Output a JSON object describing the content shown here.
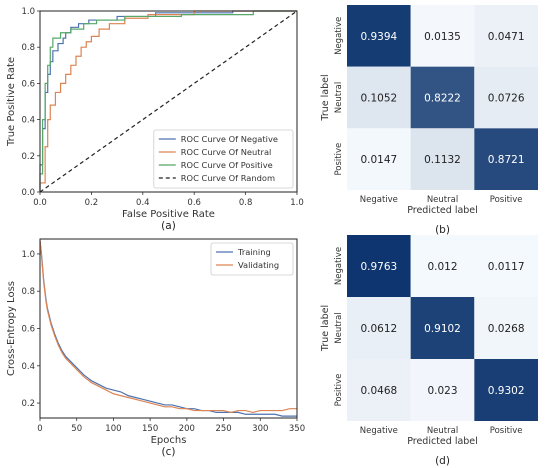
{
  "chart_data": [
    {
      "id": "a",
      "type": "line",
      "panel_label": "(a)",
      "xlabel": "False Positive Rate",
      "ylabel": "True Positive Rate",
      "xlim": [
        0,
        1
      ],
      "ylim": [
        0,
        1
      ],
      "xticks": [
        "0.0",
        "0.2",
        "0.4",
        "0.6",
        "0.8",
        "1.0"
      ],
      "yticks": [
        "0.0",
        "0.2",
        "0.4",
        "0.6",
        "0.8",
        "1.0"
      ],
      "grid": false,
      "legend_position": "lower-right",
      "series": [
        {
          "name": "ROC Curve Of Negative",
          "color": "#4c72b0",
          "style": "step",
          "points": [
            [
              0,
              0
            ],
            [
              0,
              0.15
            ],
            [
              0.01,
              0.15
            ],
            [
              0.01,
              0.35
            ],
            [
              0.02,
              0.35
            ],
            [
              0.02,
              0.55
            ],
            [
              0.03,
              0.55
            ],
            [
              0.03,
              0.65
            ],
            [
              0.04,
              0.65
            ],
            [
              0.04,
              0.72
            ],
            [
              0.05,
              0.72
            ],
            [
              0.05,
              0.78
            ],
            [
              0.07,
              0.78
            ],
            [
              0.07,
              0.82
            ],
            [
              0.09,
              0.82
            ],
            [
              0.09,
              0.85
            ],
            [
              0.1,
              0.85
            ],
            [
              0.1,
              0.88
            ],
            [
              0.12,
              0.88
            ],
            [
              0.12,
              0.91
            ],
            [
              0.15,
              0.91
            ],
            [
              0.15,
              0.93
            ],
            [
              0.19,
              0.93
            ],
            [
              0.19,
              0.95
            ],
            [
              0.3,
              0.95
            ],
            [
              0.3,
              0.97
            ],
            [
              0.45,
              0.97
            ],
            [
              0.45,
              0.99
            ],
            [
              0.75,
              0.99
            ],
            [
              0.75,
              1
            ],
            [
              1,
              1
            ]
          ]
        },
        {
          "name": "ROC Curve Of Neutral",
          "color": "#dd8452",
          "style": "step",
          "points": [
            [
              0,
              0
            ],
            [
              0,
              0.05
            ],
            [
              0.02,
              0.05
            ],
            [
              0.02,
              0.25
            ],
            [
              0.03,
              0.25
            ],
            [
              0.03,
              0.4
            ],
            [
              0.04,
              0.4
            ],
            [
              0.04,
              0.48
            ],
            [
              0.06,
              0.48
            ],
            [
              0.06,
              0.55
            ],
            [
              0.08,
              0.55
            ],
            [
              0.08,
              0.6
            ],
            [
              0.1,
              0.6
            ],
            [
              0.1,
              0.65
            ],
            [
              0.12,
              0.65
            ],
            [
              0.12,
              0.7
            ],
            [
              0.14,
              0.7
            ],
            [
              0.14,
              0.75
            ],
            [
              0.16,
              0.75
            ],
            [
              0.16,
              0.8
            ],
            [
              0.18,
              0.8
            ],
            [
              0.18,
              0.83
            ],
            [
              0.2,
              0.83
            ],
            [
              0.2,
              0.86
            ],
            [
              0.23,
              0.86
            ],
            [
              0.23,
              0.9
            ],
            [
              0.27,
              0.9
            ],
            [
              0.27,
              0.93
            ],
            [
              0.33,
              0.93
            ],
            [
              0.33,
              0.96
            ],
            [
              0.42,
              0.96
            ],
            [
              0.42,
              0.98
            ],
            [
              0.6,
              0.98
            ],
            [
              0.6,
              1
            ],
            [
              1,
              1
            ]
          ]
        },
        {
          "name": "ROC Curve Of Positive",
          "color": "#55a868",
          "style": "step",
          "points": [
            [
              0,
              0
            ],
            [
              0,
              0.1
            ],
            [
              0.01,
              0.1
            ],
            [
              0.01,
              0.4
            ],
            [
              0.02,
              0.4
            ],
            [
              0.02,
              0.6
            ],
            [
              0.03,
              0.6
            ],
            [
              0.03,
              0.7
            ],
            [
              0.04,
              0.7
            ],
            [
              0.04,
              0.8
            ],
            [
              0.05,
              0.8
            ],
            [
              0.05,
              0.85
            ],
            [
              0.08,
              0.85
            ],
            [
              0.08,
              0.88
            ],
            [
              0.12,
              0.88
            ],
            [
              0.12,
              0.9
            ],
            [
              0.17,
              0.9
            ],
            [
              0.17,
              0.93
            ],
            [
              0.22,
              0.93
            ],
            [
              0.22,
              0.95
            ],
            [
              0.33,
              0.95
            ],
            [
              0.33,
              0.97
            ],
            [
              0.55,
              0.97
            ],
            [
              0.55,
              0.98
            ],
            [
              0.83,
              0.98
            ],
            [
              0.83,
              1
            ],
            [
              1,
              1
            ]
          ]
        },
        {
          "name": "ROC Curve Of Random",
          "color": "#222222",
          "style": "dashed",
          "points": [
            [
              0,
              0
            ],
            [
              1,
              1
            ]
          ]
        }
      ]
    },
    {
      "id": "b",
      "type": "heatmap",
      "panel_label": "(b)",
      "xlabel": "Predicted label",
      "ylabel": "True label",
      "labels": [
        "Negative",
        "Neutral",
        "Positive"
      ],
      "values": [
        [
          0.9394,
          0.0135,
          0.0471
        ],
        [
          0.1052,
          0.8222,
          0.0726
        ],
        [
          0.0147,
          0.1132,
          0.8721
        ]
      ],
      "text": [
        [
          "0.9394",
          "0.0135",
          "0.0471"
        ],
        [
          "0.1052",
          "0.8222",
          "0.0726"
        ],
        [
          "0.0147",
          "0.1132",
          "0.8721"
        ]
      ],
      "colormap": "Blues"
    },
    {
      "id": "c",
      "type": "line",
      "panel_label": "(c)",
      "xlabel": "Epochs",
      "ylabel": "Cross-Entropy Loss",
      "xlim": [
        0,
        350
      ],
      "ylim": [
        0.12,
        1.08
      ],
      "xticks": [
        "0",
        "50",
        "100",
        "150",
        "200",
        "250",
        "300",
        "350"
      ],
      "yticks": [
        "0.2",
        "0.4",
        "0.6",
        "0.8",
        "1.0"
      ],
      "grid": false,
      "legend_position": "top-right",
      "series": [
        {
          "name": "Training",
          "color": "#4c72b0",
          "x": [
            0,
            2,
            5,
            8,
            10,
            15,
            20,
            25,
            30,
            35,
            40,
            50,
            60,
            70,
            80,
            90,
            100,
            110,
            120,
            130,
            140,
            150,
            160,
            170,
            180,
            190,
            200,
            210,
            220,
            230,
            240,
            250,
            260,
            270,
            280,
            290,
            300,
            310,
            320,
            330,
            340,
            350
          ],
          "y": [
            1.07,
            1.0,
            0.86,
            0.76,
            0.71,
            0.63,
            0.57,
            0.52,
            0.48,
            0.45,
            0.43,
            0.39,
            0.35,
            0.32,
            0.3,
            0.28,
            0.27,
            0.26,
            0.24,
            0.23,
            0.22,
            0.21,
            0.2,
            0.19,
            0.19,
            0.18,
            0.17,
            0.17,
            0.16,
            0.16,
            0.15,
            0.15,
            0.15,
            0.15,
            0.14,
            0.14,
            0.14,
            0.14,
            0.14,
            0.13,
            0.13,
            0.13
          ]
        },
        {
          "name": "Validating",
          "color": "#dd8452",
          "x": [
            0,
            2,
            5,
            8,
            10,
            15,
            20,
            25,
            30,
            35,
            40,
            50,
            60,
            70,
            80,
            90,
            100,
            110,
            120,
            130,
            140,
            150,
            160,
            170,
            180,
            190,
            200,
            210,
            220,
            230,
            240,
            250,
            260,
            270,
            280,
            290,
            300,
            310,
            320,
            330,
            340,
            350
          ],
          "y": [
            1.07,
            0.99,
            0.85,
            0.75,
            0.7,
            0.62,
            0.56,
            0.51,
            0.47,
            0.44,
            0.42,
            0.38,
            0.34,
            0.31,
            0.29,
            0.27,
            0.25,
            0.24,
            0.23,
            0.22,
            0.21,
            0.2,
            0.19,
            0.18,
            0.18,
            0.17,
            0.17,
            0.16,
            0.16,
            0.16,
            0.16,
            0.16,
            0.15,
            0.16,
            0.16,
            0.15,
            0.16,
            0.16,
            0.16,
            0.16,
            0.17,
            0.17
          ]
        }
      ]
    },
    {
      "id": "d",
      "type": "heatmap",
      "panel_label": "(d)",
      "xlabel": "Predicted label",
      "ylabel": "True label",
      "labels": [
        "Negative",
        "Neutral",
        "Positive"
      ],
      "values": [
        [
          0.9763,
          0.012,
          0.0117
        ],
        [
          0.0612,
          0.9102,
          0.0268
        ],
        [
          0.0468,
          0.023,
          0.9302
        ]
      ],
      "text": [
        [
          "0.9763",
          "0.012",
          "0.0117"
        ],
        [
          "0.0612",
          "0.9102",
          "0.0268"
        ],
        [
          "0.0468",
          "0.023",
          "0.9302"
        ]
      ],
      "colormap": "Blues"
    }
  ]
}
